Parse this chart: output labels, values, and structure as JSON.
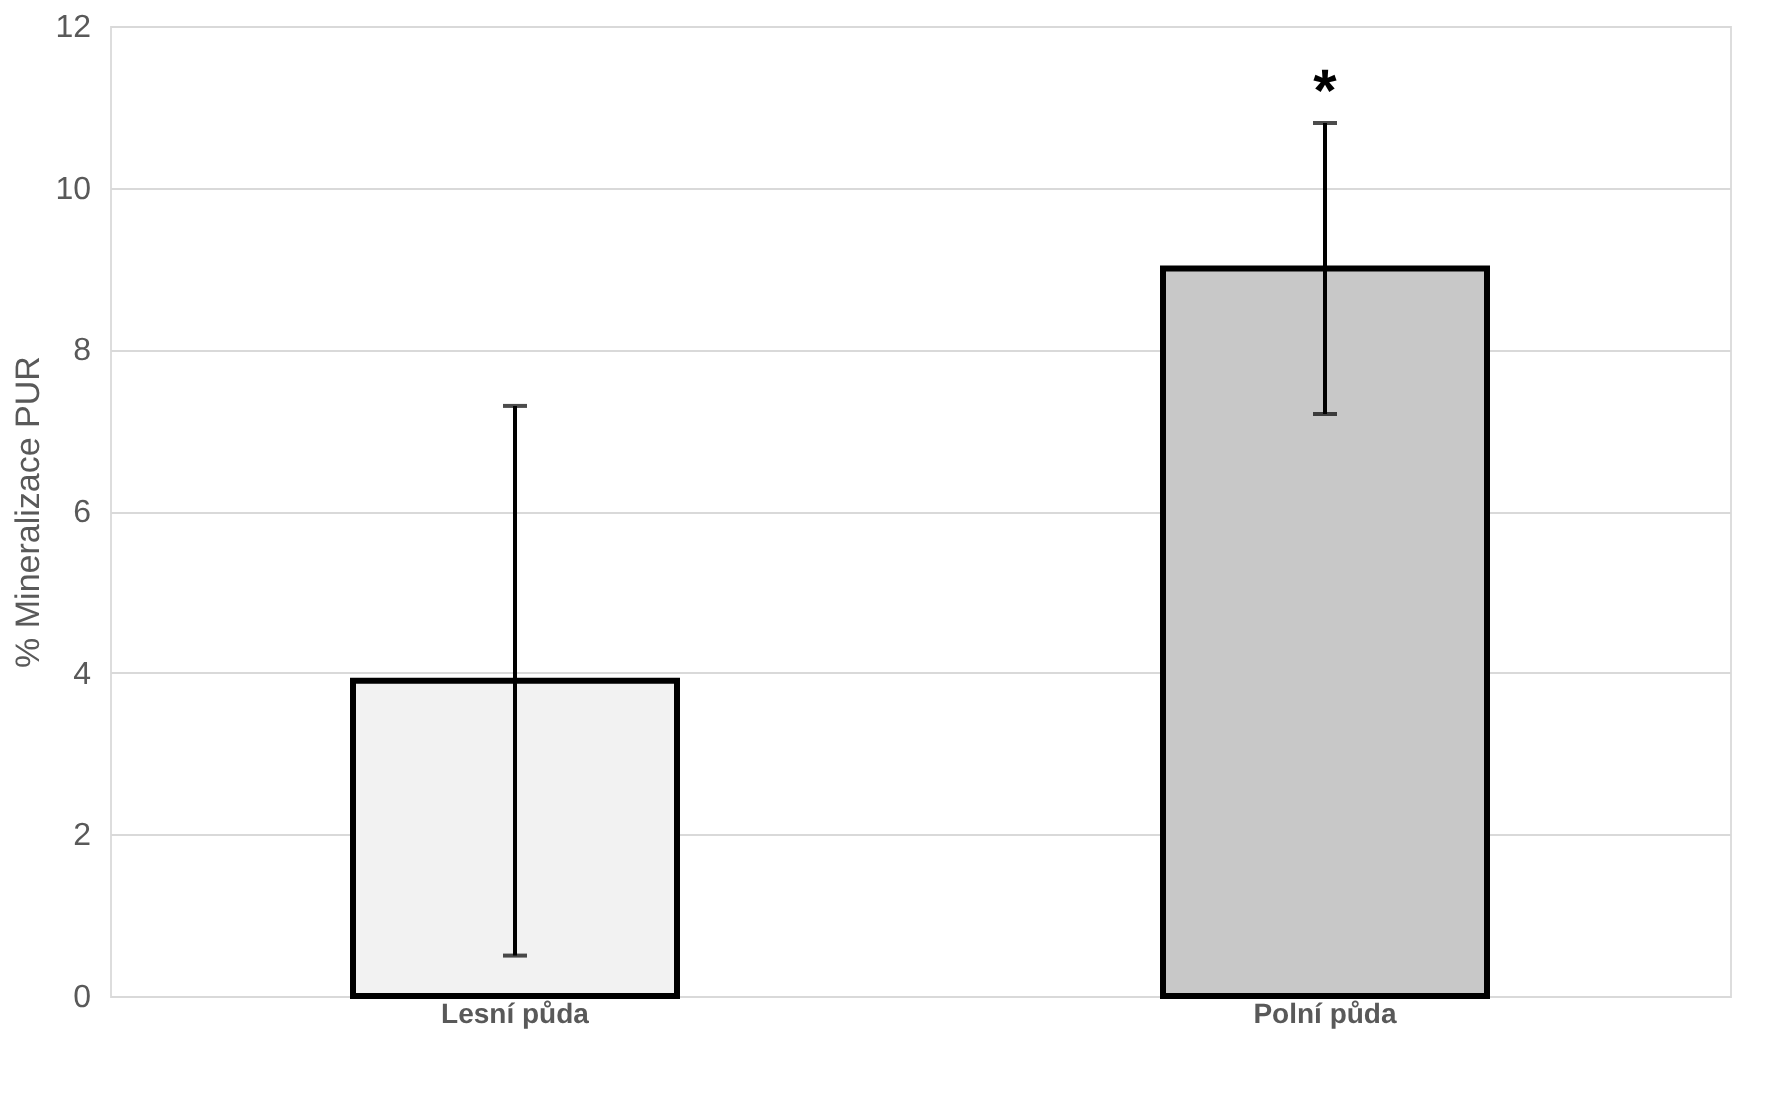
{
  "chart_data": {
    "type": "bar",
    "categories": [
      "Lesní půda",
      "Polní půda"
    ],
    "values": [
      3.9,
      9.0
    ],
    "colors": [
      "#f2f2f2",
      "#c8c8c8"
    ],
    "errors": [
      3.4,
      1.8
    ],
    "ylabel": "% Mineralizace PUR",
    "ylim": [
      0,
      12
    ],
    "yticks": [
      0,
      2,
      4,
      6,
      8,
      10,
      12
    ],
    "grid": "y",
    "annotations": [
      "*"
    ]
  }
}
